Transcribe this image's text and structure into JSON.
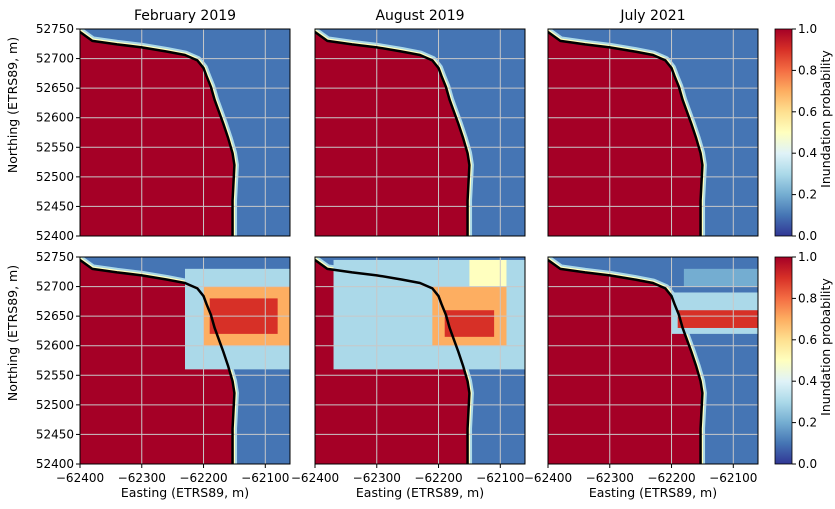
{
  "chart_data": {
    "type": "heatmap",
    "panel_titles": [
      "February 2019",
      "August 2019",
      "July 2021"
    ],
    "xlabel": "Easting (ETRS89, m)",
    "ylabel": "Northing (ETRS89, m)",
    "colorbar_label": "Inundation probability",
    "xlim": [
      -62400,
      -62060
    ],
    "ylim": [
      52400,
      52750
    ],
    "xticks": [
      -62400,
      -62300,
      -62200,
      -62100
    ],
    "xtick_labels": [
      "−62400",
      "−62300",
      "−62200",
      "−62100"
    ],
    "yticks": [
      52400,
      52450,
      52500,
      52550,
      52600,
      52650,
      52700,
      52750
    ],
    "ytick_labels": [
      "52400",
      "52450",
      "52500",
      "52550",
      "52600",
      "52650",
      "52700",
      "52750"
    ],
    "colorbar_range": [
      0.0,
      1.0
    ],
    "colorbar_ticks": [
      0.0,
      0.2,
      0.4,
      0.6,
      0.8,
      1.0
    ],
    "colorbar_tick_labels": [
      "0.0",
      "0.2",
      "0.4",
      "0.6",
      "0.8",
      "1.0"
    ],
    "colormap": "RdYlBu",
    "colormap_levels": [
      "#313695",
      "#4575b4",
      "#74add1",
      "#abd9e9",
      "#e0f3f8",
      "#ffffbf",
      "#fee090",
      "#fdae61",
      "#f46d43",
      "#d73027",
      "#a50026"
    ],
    "grid": true,
    "shoreline_color": "#000000",
    "shoreline": [
      [
        -62400,
        52745
      ],
      [
        -62380,
        52730
      ],
      [
        -62340,
        52724
      ],
      [
        -62300,
        52719
      ],
      [
        -62260,
        52712
      ],
      [
        -62230,
        52706
      ],
      [
        -62210,
        52697
      ],
      [
        -62200,
        52684
      ],
      [
        -62195,
        52670
      ],
      [
        -62188,
        52652
      ],
      [
        -62182,
        52630
      ],
      [
        -62175,
        52610
      ],
      [
        -62168,
        52590
      ],
      [
        -62160,
        52565
      ],
      [
        -62153,
        52540
      ],
      [
        -62150,
        52520
      ],
      [
        -62151,
        52500
      ],
      [
        -62152,
        52480
      ],
      [
        -62153,
        52460
      ],
      [
        -62153,
        52440
      ],
      [
        -62153,
        52420
      ],
      [
        -62153,
        52400
      ]
    ]
  }
}
